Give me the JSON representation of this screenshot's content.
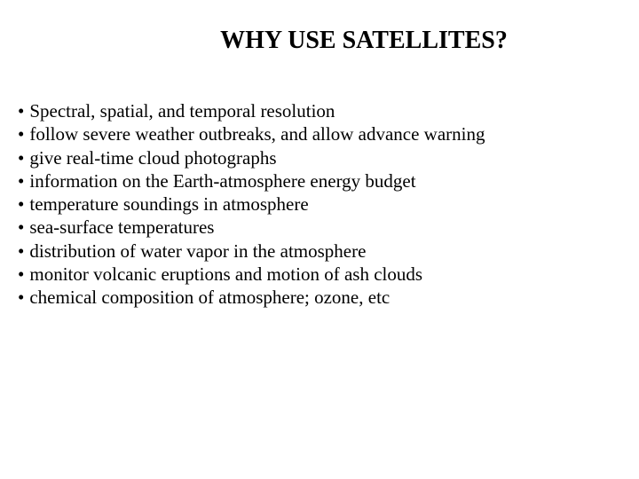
{
  "title": "WHY USE SATELLITES?",
  "bullets": {
    "item0": "Spectral, spatial, and temporal resolution",
    "item1": "follow severe weather outbreaks, and allow advance warning",
    "item2": "give real-time cloud photographs",
    "item3": "information on the Earth-atmosphere energy budget",
    "item4": "temperature soundings in atmosphere",
    "item5": "sea-surface temperatures",
    "item6": "distribution of water vapor in the atmosphere",
    "item7": "monitor volcanic eruptions and motion of ash clouds",
    "item8": "chemical composition of atmosphere; ozone, etc"
  },
  "styling": {
    "background_color": "#ffffff",
    "text_color": "#000000",
    "font_family": "Times New Roman",
    "title_fontsize": 28,
    "title_weight": "bold",
    "body_fontsize": 21,
    "line_height": 1.25
  }
}
